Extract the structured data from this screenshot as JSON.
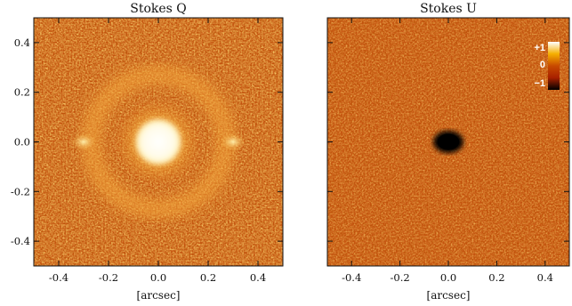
{
  "chart_data": [
    {
      "type": "heatmap",
      "title": "Stokes Q",
      "xlabel": "[arcsec]",
      "ylabel": "",
      "xlim": [
        -0.5,
        0.5
      ],
      "ylim": [
        -0.5,
        0.5
      ],
      "xticks": [
        "-0.4",
        "-0.2",
        "0.0",
        "0.2",
        "0.4"
      ],
      "yticks": [
        "-0.4",
        "-0.2",
        "0.0",
        "0.2",
        "0.4"
      ],
      "xtick_values": [
        -0.4,
        -0.2,
        0.0,
        0.2,
        0.4
      ],
      "ytick_values": [
        -0.4,
        -0.2,
        0.0,
        0.2,
        0.4
      ],
      "features": [
        {
          "kind": "central-saturated-disk",
          "x": 0.0,
          "y": 0.0,
          "radius": 0.09
        },
        {
          "kind": "ring",
          "x": 0.0,
          "y": 0.0,
          "radius": 0.27
        },
        {
          "kind": "bright-lobe",
          "x": -0.3,
          "y": 0.0
        },
        {
          "kind": "bright-lobe",
          "x": 0.3,
          "y": 0.0
        }
      ]
    },
    {
      "type": "heatmap",
      "title": "Stokes U",
      "xlabel": "[arcsec]",
      "ylabel": "",
      "xlim": [
        -0.5,
        0.5
      ],
      "ylim": [
        -0.5,
        0.5
      ],
      "xticks": [
        "-0.4",
        "-0.2",
        "0.0",
        "0.2",
        "0.4"
      ],
      "yticks": [],
      "xtick_values": [
        -0.4,
        -0.2,
        0.0,
        0.2,
        0.4
      ],
      "ytick_values": [
        -0.4,
        -0.2,
        0.0,
        0.2,
        0.4
      ],
      "features": [
        {
          "kind": "central-dark-blob",
          "x": 0.0,
          "y": 0.0,
          "radius": 0.05
        }
      ],
      "colorbar": {
        "labels": [
          "+1",
          "0",
          "−1"
        ],
        "values": [
          1,
          0,
          -1
        ],
        "colors": [
          "#ffffff",
          "#f2a000",
          "#c04000",
          "#b02000",
          "#000000"
        ]
      }
    }
  ],
  "colors": {
    "background_low": "#9c2a06",
    "background_mid": "#c85512",
    "background_high": "#f0a030",
    "saturated": "#fffbe8",
    "negative": "#050000"
  }
}
